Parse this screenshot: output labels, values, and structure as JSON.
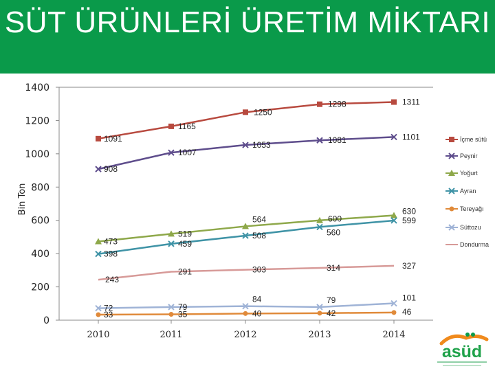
{
  "header": {
    "title": "SÜT ÜRÜNLERİ ÜRETİM MİKTARI"
  },
  "logo": {
    "text": "asüd"
  },
  "chart_data": {
    "type": "line",
    "ylabel": "Bin Ton",
    "xlabel": "",
    "ylim": [
      0,
      1400
    ],
    "yticks": [
      0,
      200,
      400,
      600,
      800,
      1000,
      1200,
      1400
    ],
    "categories": [
      "2010",
      "2011",
      "2012",
      "2013",
      "2014"
    ],
    "legend_position": "right",
    "grid": false,
    "series": [
      {
        "name": "İçme sütü",
        "color": "#b84a3f",
        "marker": "square",
        "values": [
          1091,
          1165,
          1250,
          1298,
          1311
        ]
      },
      {
        "name": "Peynir",
        "color": "#5e4d8c",
        "marker": "x",
        "values": [
          908,
          1007,
          1053,
          1081,
          1101
        ]
      },
      {
        "name": "Yoğurt",
        "color": "#8ea84a",
        "marker": "triangle",
        "values": [
          473,
          519,
          564,
          600,
          630
        ]
      },
      {
        "name": "Ayran",
        "color": "#3f93a6",
        "marker": "x",
        "values": [
          398,
          459,
          508,
          560,
          599
        ]
      },
      {
        "name": "Tereyağı",
        "color": "#e08a3a",
        "marker": "circle",
        "values": [
          33,
          35,
          40,
          42,
          46
        ]
      },
      {
        "name": "Süttozu",
        "color": "#9fb3d6",
        "marker": "x",
        "values": [
          72,
          79,
          84,
          79,
          101
        ]
      },
      {
        "name": "Dondurma",
        "color": "#d79a98",
        "marker": "none",
        "values": [
          243,
          291,
          303,
          314,
          327
        ]
      }
    ]
  }
}
